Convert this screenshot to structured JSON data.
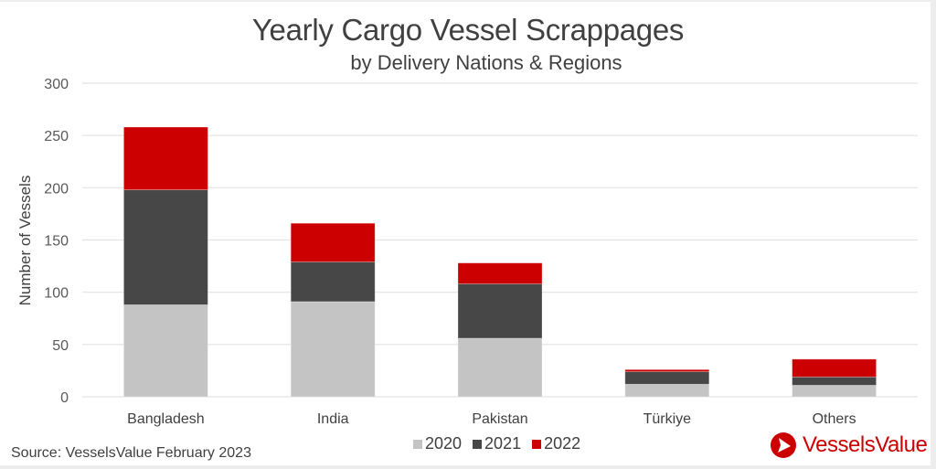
{
  "chart_data": {
    "type": "bar",
    "stacked": true,
    "title": "Yearly Cargo Vessel Scrappages",
    "subtitle": "by Delivery Nations & Regions",
    "xlabel": "",
    "ylabel": "Number of Vessels",
    "ylim": [
      0,
      300
    ],
    "yticks": [
      0,
      50,
      100,
      150,
      200,
      250,
      300
    ],
    "grid": true,
    "legend_position": "bottom",
    "categories": [
      "Bangladesh",
      "India",
      "Pakistan",
      "Türkiye",
      "Others"
    ],
    "series": [
      {
        "name": "2020",
        "color": "#c4c4c4",
        "values": [
          88,
          91,
          56,
          12,
          11
        ]
      },
      {
        "name": "2021",
        "color": "#474747",
        "values": [
          110,
          38,
          52,
          12,
          8
        ]
      },
      {
        "name": "2022",
        "color": "#cc0000",
        "values": [
          60,
          37,
          20,
          2,
          17
        ]
      }
    ]
  },
  "footer": {
    "source": "Source: VesselsValue February 2023",
    "logo_text": "VesselsValue",
    "logo_icon": "vesselsvalue-logo-icon",
    "brand_color": "#cc0000"
  }
}
